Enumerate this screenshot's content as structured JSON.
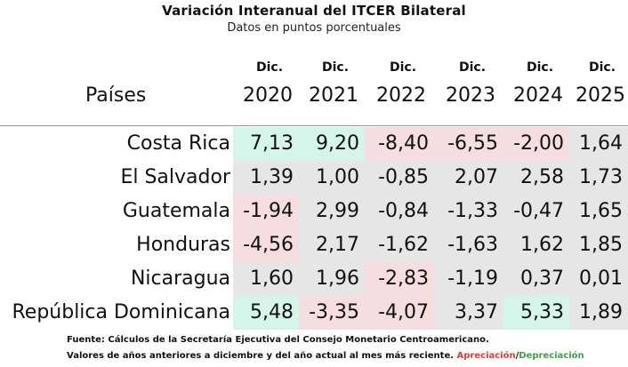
{
  "title": "Variación Interanual del ITCER Bilateral",
  "subtitle": "Datos en puntos porcentuales",
  "header": {
    "first_col": "Países",
    "columns": [
      {
        "top": "Dic.",
        "year": "2020"
      },
      {
        "top": "Dic.",
        "year": "2021"
      },
      {
        "top": "Dic.",
        "year": "2022"
      },
      {
        "top": "Dic.",
        "year": "2023"
      },
      {
        "top": "Dic.",
        "year": "2024"
      },
      {
        "top": "Dic.",
        "year": "2025"
      }
    ]
  },
  "rows": [
    {
      "country": "Costa Rica",
      "values": [
        "7,13",
        "9,20",
        "-8,40",
        "-6,55",
        "-2,00",
        "1,64"
      ]
    },
    {
      "country": "El Salvador",
      "values": [
        "1,39",
        "1,00",
        "-0,85",
        "2,07",
        "2,58",
        "1,73"
      ]
    },
    {
      "country": "Guatemala",
      "values": [
        "-1,94",
        "2,99",
        "-0,84",
        "-1,33",
        "-0,47",
        "1,65"
      ]
    },
    {
      "country": "Honduras",
      "values": [
        "-4,56",
        "2,17",
        "-1,62",
        "-1,63",
        "1,62",
        "1,85"
      ]
    },
    {
      "country": "Nicaragua",
      "values": [
        "1,60",
        "1,96",
        "-2,83",
        "-1,19",
        "0,37",
        "0,01"
      ]
    },
    {
      "country": "República Dominicana",
      "values": [
        "5,48",
        "-3,35",
        "-4,07",
        "3,37",
        "5,33",
        "1,89"
      ]
    }
  ],
  "footer": {
    "line1": "Fuente: Cálculos de la Secretaría Ejecutiva del Consejo Monetario Centroamericano.",
    "line2": "Valores de años anteriores a diciembre y del año actual al mes más reciente.",
    "legend_appreciation": "Apreciación",
    "legend_separator": "/",
    "legend_depreciation": "Depreciación"
  },
  "colors": {
    "appreciation": "#e53935",
    "depreciation": "#43a047",
    "strong_positive_fill": "#d6f5ea",
    "strong_negative_fill": "#f6dde2",
    "neutral_fill": "#e6e6e6"
  }
}
